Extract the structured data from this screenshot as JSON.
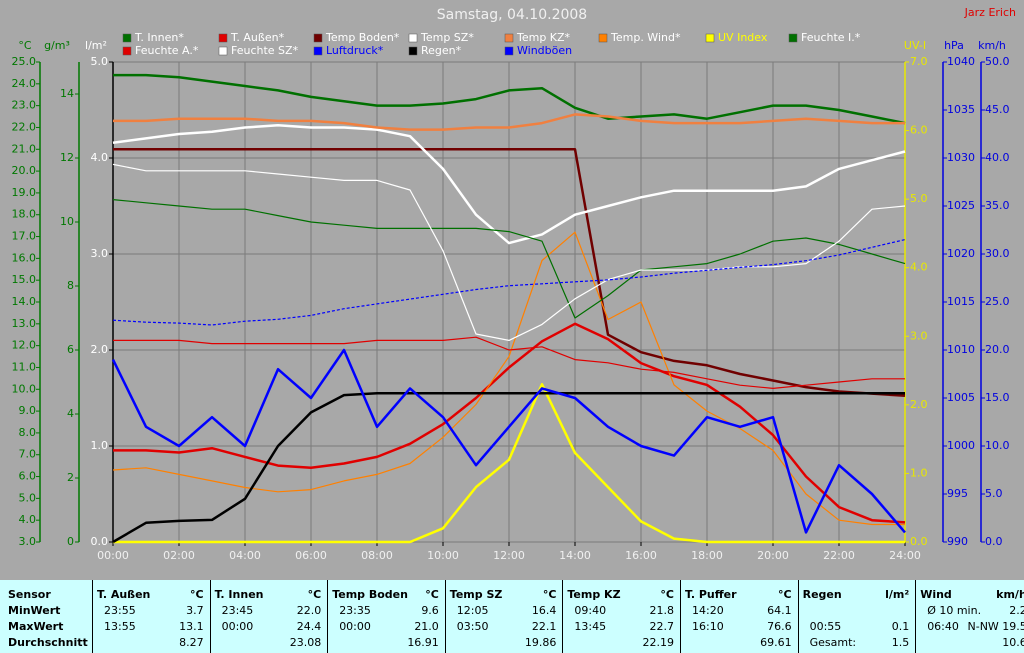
{
  "chart_data": {
    "type": "line",
    "title": "Samstag, 04.10.2008",
    "author": "Jarz Erich",
    "grid": true,
    "x": [
      0,
      1,
      2,
      3,
      4,
      5,
      6,
      7,
      8,
      9,
      10,
      11,
      12,
      13,
      14,
      15,
      16,
      17,
      18,
      19,
      20,
      21,
      22,
      23,
      24
    ],
    "xlim": [
      0,
      24
    ],
    "xticks": [
      {
        "value": 0,
        "label": "00:00"
      },
      {
        "value": 2,
        "label": "02:00"
      },
      {
        "value": 4,
        "label": "04:00"
      },
      {
        "value": 6,
        "label": "06:00"
      },
      {
        "value": 8,
        "label": "08:00"
      },
      {
        "value": 10,
        "label": "10:00"
      },
      {
        "value": 12,
        "label": "12:00"
      },
      {
        "value": 14,
        "label": "14:00"
      },
      {
        "value": 16,
        "label": "16:00"
      },
      {
        "value": 18,
        "label": "18:00"
      },
      {
        "value": 20,
        "label": "20:00"
      },
      {
        "value": 22,
        "label": "22:00"
      },
      {
        "value": 24,
        "label": "24:00"
      }
    ],
    "axes": [
      {
        "label": "°C",
        "color": "#007800",
        "lim": [
          3,
          25
        ],
        "ticks": [
          {
            "value": 3,
            "label": "3.0"
          },
          {
            "value": 4,
            "label": "4.0"
          },
          {
            "value": 5,
            "label": "5.0"
          },
          {
            "value": 6,
            "label": "6.0"
          },
          {
            "value": 7,
            "label": "7.0"
          },
          {
            "value": 8,
            "label": "8.0"
          },
          {
            "value": 9,
            "label": "9.0"
          },
          {
            "value": 10,
            "label": "10.0"
          },
          {
            "value": 11,
            "label": "11.0"
          },
          {
            "value": 12,
            "label": "12.0"
          },
          {
            "value": 13,
            "label": "13.0"
          },
          {
            "value": 14,
            "label": "14.0"
          },
          {
            "value": 15,
            "label": "15.0"
          },
          {
            "value": 16,
            "label": "16.0"
          },
          {
            "value": 17,
            "label": "17.0"
          },
          {
            "value": 18,
            "label": "18.0"
          },
          {
            "value": 19,
            "label": "19.0"
          },
          {
            "value": 20,
            "label": "20.0"
          },
          {
            "value": 21,
            "label": "21.0"
          },
          {
            "value": 22,
            "label": "22.0"
          },
          {
            "value": 23,
            "label": "23.0"
          },
          {
            "value": 24,
            "label": "24.0"
          },
          {
            "value": 25,
            "label": "25.0"
          }
        ]
      },
      {
        "label": "g/m³",
        "color": "#007800",
        "lim": [
          0,
          15
        ],
        "ticks": [
          0,
          2,
          4,
          6,
          8,
          10,
          12,
          14
        ]
      },
      {
        "label": "l/m²",
        "color": "#000000",
        "lim": [
          0,
          5
        ],
        "ticks": [
          {
            "value": 0,
            "label": "0.0"
          },
          {
            "value": 1,
            "label": "1.0"
          },
          {
            "value": 2,
            "label": "2.0"
          },
          {
            "value": 3,
            "label": "3.0"
          },
          {
            "value": 4,
            "label": "4.0"
          },
          {
            "value": 5,
            "label": "5.0"
          }
        ]
      },
      {
        "label": "UV-I",
        "color": "#e8e800",
        "lim": [
          0,
          7
        ],
        "ticks": [
          {
            "value": 0,
            "label": "0.0"
          },
          {
            "value": 1,
            "label": "1.0"
          },
          {
            "value": 2,
            "label": "2.0"
          },
          {
            "value": 3,
            "label": "3.0"
          },
          {
            "value": 4,
            "label": "4.0"
          },
          {
            "value": 5,
            "label": "5.0"
          },
          {
            "value": 6,
            "label": "6.0"
          },
          {
            "value": 7,
            "label": "7.0"
          }
        ]
      },
      {
        "label": "hPa",
        "color": "#0000e0",
        "lim": [
          990,
          1040
        ],
        "ticks": [
          990,
          995,
          1000,
          1005,
          1010,
          1015,
          1020,
          1025,
          1030,
          1035,
          1040
        ]
      },
      {
        "label": "km/h",
        "color": "#0000e0",
        "lim": [
          0,
          50
        ],
        "ticks": [
          {
            "value": 0,
            "label": "0.0"
          },
          {
            "value": 5,
            "label": "5.0"
          },
          {
            "value": 10,
            "label": "10.0"
          },
          {
            "value": 15,
            "label": "15.0"
          },
          {
            "value": 20,
            "label": "20.0"
          },
          {
            "value": 25,
            "label": "25.0"
          },
          {
            "value": 30,
            "label": "30.0"
          },
          {
            "value": 35,
            "label": "35.0"
          },
          {
            "value": 40,
            "label": "40.0"
          },
          {
            "value": 45,
            "label": "45.0"
          },
          {
            "value": 50,
            "label": "50.0"
          }
        ]
      }
    ],
    "series": [
      {
        "name": "T. Innen*",
        "color": "#007000",
        "axis": 0,
        "style": "thick",
        "values": [
          24.4,
          24.4,
          24.3,
          24.1,
          23.9,
          23.7,
          23.4,
          23.2,
          23.0,
          23.0,
          23.1,
          23.3,
          23.7,
          23.8,
          22.9,
          22.4,
          22.5,
          22.6,
          22.4,
          22.7,
          23.0,
          23.0,
          22.8,
          22.5,
          22.2
        ]
      },
      {
        "name": "T. Außen*",
        "color": "#e00000",
        "axis": 0,
        "style": "thick",
        "values": [
          7.2,
          7.2,
          7.1,
          7.3,
          6.9,
          6.5,
          6.4,
          6.6,
          6.9,
          7.5,
          8.4,
          9.6,
          11.0,
          12.2,
          13.0,
          12.3,
          11.2,
          10.6,
          10.2,
          9.2,
          7.9,
          6.0,
          4.6,
          4.0,
          3.9
        ]
      },
      {
        "name": "Temp Boden*",
        "color": "#700000",
        "axis": 0,
        "style": "thick",
        "values": [
          21.0,
          21.0,
          21.0,
          21.0,
          21.0,
          21.0,
          21.0,
          21.0,
          21.0,
          21.0,
          21.0,
          21.0,
          21.0,
          21.0,
          21.0,
          12.5,
          11.7,
          11.3,
          11.1,
          10.7,
          10.4,
          10.1,
          9.9,
          9.8,
          9.7
        ]
      },
      {
        "name": "Temp SZ*",
        "color": "#ffffff",
        "axis": 0,
        "style": "thick",
        "values": [
          21.3,
          21.5,
          21.7,
          21.8,
          22.0,
          22.1,
          22.0,
          22.0,
          21.9,
          21.6,
          20.1,
          18.0,
          16.7,
          17.1,
          18.0,
          18.4,
          18.8,
          19.1,
          19.1,
          19.1,
          19.1,
          19.3,
          20.1,
          20.5,
          20.9
        ]
      },
      {
        "name": "Temp KZ*",
        "color": "#f08040",
        "axis": 0,
        "style": "thick",
        "values": [
          22.3,
          22.3,
          22.4,
          22.4,
          22.4,
          22.3,
          22.3,
          22.2,
          22.0,
          21.9,
          21.9,
          22.0,
          22.0,
          22.2,
          22.6,
          22.5,
          22.3,
          22.2,
          22.2,
          22.2,
          22.3,
          22.4,
          22.3,
          22.2,
          22.2
        ]
      },
      {
        "name": "Temp. Wind*",
        "color": "#ff8000",
        "axis": 0,
        "style": "thin",
        "values": [
          6.3,
          6.4,
          6.1,
          5.8,
          5.5,
          5.3,
          5.4,
          5.8,
          6.1,
          6.6,
          7.8,
          9.3,
          11.5,
          15.9,
          17.2,
          13.2,
          14.0,
          10.2,
          9.0,
          8.2,
          7.2,
          5.2,
          4.0,
          3.8,
          3.8
        ]
      },
      {
        "name": "UV Index",
        "color": "#ffff00",
        "text_color": "#ffff00",
        "axis": 3,
        "style": "thick",
        "values": [
          0,
          0,
          0,
          0,
          0,
          0,
          0,
          0,
          0,
          0,
          0.2,
          0.8,
          1.2,
          2.3,
          1.3,
          0.8,
          0.3,
          0.05,
          0,
          0,
          0,
          0,
          0,
          0,
          0
        ]
      },
      {
        "name": "Feuchte I.*",
        "color": "#007000",
        "axis": 1,
        "style": "thin",
        "values": [
          10.7,
          10.6,
          10.5,
          10.4,
          10.4,
          10.2,
          10.0,
          9.9,
          9.8,
          9.8,
          9.8,
          9.8,
          9.7,
          9.4,
          7.0,
          7.7,
          8.5,
          8.6,
          8.7,
          9.0,
          9.4,
          9.5,
          9.3,
          9.0,
          8.7
        ]
      },
      {
        "name": "Feuchte A.*",
        "color": "#e00000",
        "axis": 1,
        "style": "thin",
        "values": [
          6.3,
          6.3,
          6.3,
          6.2,
          6.2,
          6.2,
          6.2,
          6.2,
          6.3,
          6.3,
          6.3,
          6.4,
          6.0,
          6.1,
          5.7,
          5.6,
          5.4,
          5.3,
          5.1,
          4.9,
          4.8,
          4.9,
          5.0,
          5.1,
          5.1
        ]
      },
      {
        "name": "Feuchte SZ*",
        "color": "#ffffff",
        "axis": 1,
        "style": "thin",
        "values": [
          11.8,
          11.6,
          11.6,
          11.6,
          11.6,
          11.5,
          11.4,
          11.3,
          11.3,
          11.0,
          9.1,
          6.5,
          6.3,
          6.8,
          7.6,
          8.2,
          8.5,
          8.5,
          8.5,
          8.6,
          8.6,
          8.7,
          9.4,
          10.4,
          10.5
        ]
      },
      {
        "name": "Luftdruck*",
        "color": "#0000ff",
        "text_color": "#0000ff",
        "axis": 4,
        "style": "dotted",
        "values": [
          1013.1,
          1012.9,
          1012.8,
          1012.6,
          1013.0,
          1013.2,
          1013.6,
          1014.3,
          1014.8,
          1015.3,
          1015.8,
          1016.3,
          1016.7,
          1016.9,
          1017.1,
          1017.3,
          1017.6,
          1018.0,
          1018.3,
          1018.6,
          1018.9,
          1019.3,
          1019.9,
          1020.7,
          1021.5
        ]
      },
      {
        "name": "Regen*",
        "color": "#000000",
        "axis": 2,
        "style": "thick",
        "values": [
          0,
          0.2,
          0.22,
          0.23,
          0.45,
          1.0,
          1.35,
          1.53,
          1.55,
          1.55,
          1.55,
          1.55,
          1.55,
          1.55,
          1.55,
          1.55,
          1.55,
          1.55,
          1.55,
          1.55,
          1.55,
          1.55,
          1.55,
          1.55,
          1.55
        ]
      },
      {
        "name": "Windböen",
        "color": "#0000ff",
        "text_color": "#0000ff",
        "axis": 5,
        "style": "thick",
        "values": [
          19,
          12,
          10,
          13,
          10,
          18,
          15,
          20,
          12,
          16,
          13,
          8,
          12,
          16,
          15,
          12,
          10,
          9,
          13,
          12,
          13,
          1,
          8,
          5,
          1
        ]
      }
    ]
  },
  "table": {
    "row_labels": [
      "Sensor",
      "MinWert",
      "MaxWert",
      "Durchschnitt"
    ],
    "columns": [
      {
        "name": "T. Außen",
        "unit": "°C",
        "rows": [
          [
            "23:55",
            "3.7"
          ],
          [
            "13:55",
            "13.1"
          ],
          [
            "8.27"
          ]
        ]
      },
      {
        "name": "T. Innen",
        "unit": "°C",
        "rows": [
          [
            "23:45",
            "22.0"
          ],
          [
            "00:00",
            "24.4"
          ],
          [
            "23.08"
          ]
        ]
      },
      {
        "name": "Temp Boden",
        "unit": "°C",
        "rows": [
          [
            "23:35",
            "9.6"
          ],
          [
            "00:00",
            "21.0"
          ],
          [
            "16.91"
          ]
        ]
      },
      {
        "name": "Temp SZ",
        "unit": "°C",
        "rows": [
          [
            "12:05",
            "16.4"
          ],
          [
            "03:50",
            "22.1"
          ],
          [
            "19.86"
          ]
        ]
      },
      {
        "name": "Temp KZ",
        "unit": "°C",
        "rows": [
          [
            "09:40",
            "21.8"
          ],
          [
            "13:45",
            "22.7"
          ],
          [
            "22.19"
          ]
        ]
      },
      {
        "name": "T. Puffer",
        "unit": "°C",
        "rows": [
          [
            "14:20",
            "64.1"
          ],
          [
            "16:10",
            "76.6"
          ],
          [
            "69.61"
          ]
        ]
      },
      {
        "name": "Regen",
        "unit": "l/m²",
        "rows": [
          [],
          [
            "00:55",
            "0.1"
          ],
          [
            "Gesamt:",
            "1.5"
          ]
        ]
      },
      {
        "name": "Wind",
        "unit": "km/h",
        "rows": [
          [
            "Ø 10 min.",
            "2.2"
          ],
          [
            "06:40",
            "N-NW 19.5"
          ],
          [
            "10.6"
          ]
        ]
      }
    ]
  }
}
